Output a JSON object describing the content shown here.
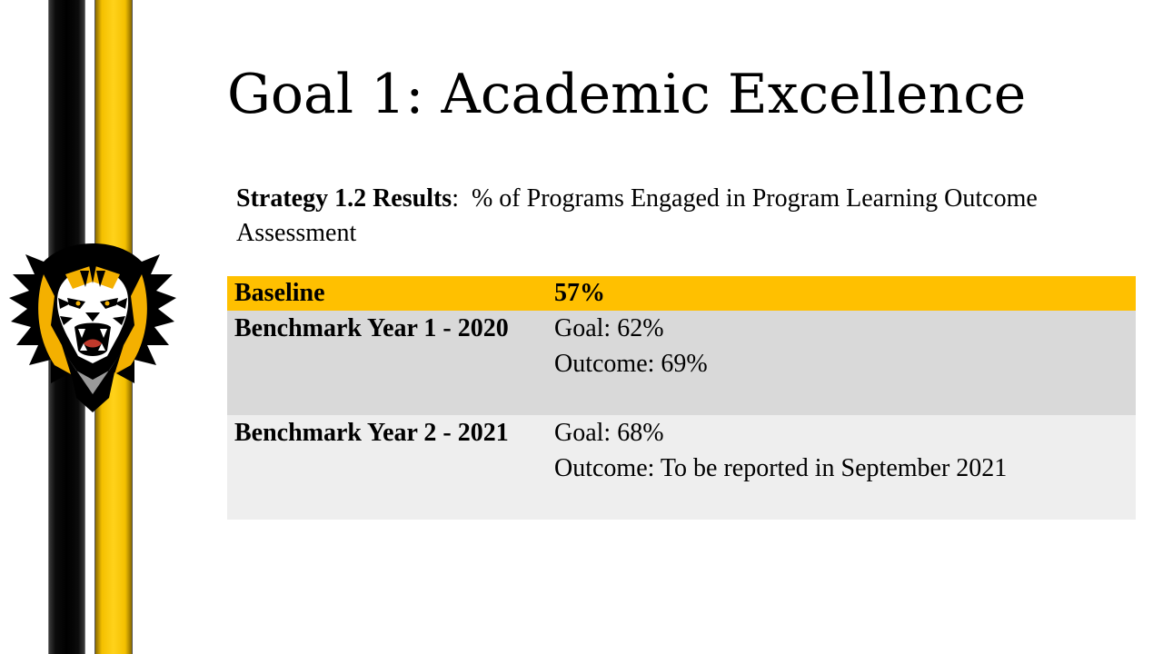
{
  "slide": {
    "title": "Goal 1:  Academic Excellence",
    "strategy": {
      "label": "Strategy 1.2 Results",
      "separator": ":  ",
      "text": "% of Programs Engaged in Program Learning Outcome Assessment"
    },
    "table": {
      "rows": [
        {
          "label": "Baseline",
          "lines": [
            "57%"
          ]
        },
        {
          "label": "Benchmark Year 1 - 2020",
          "lines": [
            "Goal: 62%",
            "Outcome: 69%"
          ]
        },
        {
          "label": "Benchmark Year 2 - 2021",
          "lines": [
            "Goal: 68%",
            "Outcome: To be reported in September 2021"
          ]
        }
      ]
    }
  },
  "colors": {
    "gold": "#ffc000",
    "row_gray_dark": "#d9d9d9",
    "row_gray_light": "#eeeeee",
    "stripe_black": "#000000",
    "stripe_gold": "#ffd21a"
  },
  "icons": {
    "mascot": "tiger-head-mascot-icon"
  }
}
